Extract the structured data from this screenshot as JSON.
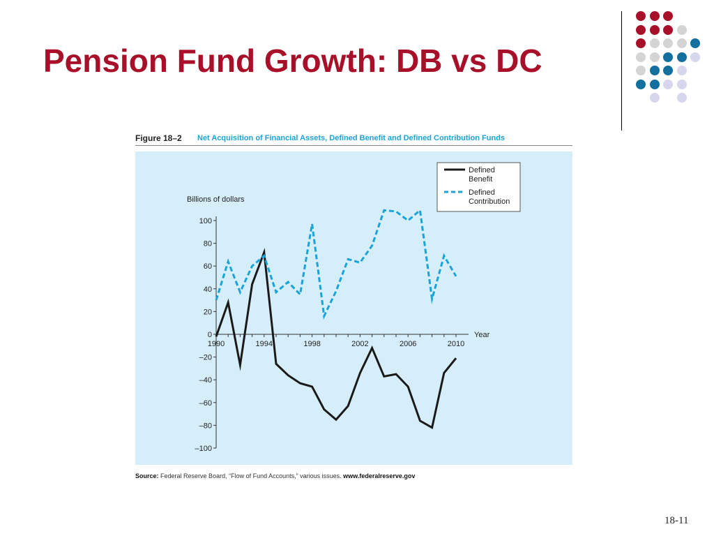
{
  "slide": {
    "title": "Pension Fund Growth: DB vs DC",
    "page_number": "18-11"
  },
  "decoration": {
    "dot_grid": [
      [
        "red",
        "red",
        "red",
        null,
        null
      ],
      [
        "red",
        "red",
        "red",
        "lightgray",
        null
      ],
      [
        "red",
        "lightgray",
        "lightgray",
        "lightgray",
        "blue"
      ],
      [
        "lightgray",
        "lightgray",
        "blue",
        "blue",
        "lavender"
      ],
      [
        "lightgray",
        "blue",
        "blue",
        "lavender",
        null
      ],
      [
        "blue",
        "blue",
        "lavender",
        "lavender",
        null
      ],
      [
        null,
        "lavender",
        null,
        "lavender",
        null
      ]
    ],
    "colors": {
      "red": "#a8102a",
      "lightgray": "#d4d4d4",
      "blue": "#136f9e",
      "lavender": "#d6d6ec"
    }
  },
  "figure": {
    "label": "Figure 18–2",
    "caption": "Net Acquisition of Financial Assets, Defined Benefit and Defined Contribution Funds",
    "source_label": "Source:",
    "source_text": "Federal Reserve Board, “Flow of Fund Accounts,” various issues.",
    "source_url": "www.federalreserve.gov"
  },
  "chart_data": {
    "type": "line",
    "title": "Net Acquisition of Financial Assets, Defined Benefit and Defined Contribution Funds",
    "ylabel": "Billions of dollars",
    "xlabel": "Year",
    "xlim": [
      1990,
      2010
    ],
    "ylim": [
      -100,
      100
    ],
    "x_ticks": [
      1990,
      1994,
      1998,
      2002,
      2006,
      2010
    ],
    "y_ticks": [
      100,
      80,
      60,
      40,
      20,
      0,
      -20,
      -40,
      -60,
      -80,
      -100
    ],
    "y_tick_labels": [
      "100",
      "80",
      "60",
      "40",
      "20",
      "0",
      "–20",
      "–40",
      "–60",
      "–80",
      "–100"
    ],
    "legend_position": "top-right",
    "grid": false,
    "background": "#d6eef9",
    "series": [
      {
        "name": "Defined Benefit",
        "legend_lines": [
          "Defined",
          "Benefit"
        ],
        "color": "#1a1a1a",
        "style": "solid",
        "x": [
          1990,
          1991,
          1992,
          1993,
          1994,
          1995,
          1996,
          1997,
          1998,
          1999,
          2000,
          2001,
          2002,
          2003,
          2004,
          2005,
          2006,
          2007,
          2008,
          2009,
          2010
        ],
        "values": [
          -2,
          28,
          -27,
          44,
          72,
          -26,
          -36,
          -43,
          -46,
          -66,
          -75,
          -63,
          -34,
          -12,
          -37,
          -35,
          -46,
          -76,
          -82,
          -34,
          -21
        ]
      },
      {
        "name": "Defined Contribution",
        "legend_lines": [
          "Defined",
          "Contribution"
        ],
        "color": "#1aa3d9",
        "style": "dashed",
        "x": [
          1990,
          1991,
          1992,
          1993,
          1994,
          1995,
          1996,
          1997,
          1998,
          1999,
          2000,
          2001,
          2002,
          2003,
          2004,
          2005,
          2006,
          2007,
          2008,
          2009,
          2010
        ],
        "values": [
          30,
          64,
          37,
          60,
          69,
          37,
          46,
          35,
          97,
          16,
          38,
          66,
          63,
          78,
          109,
          108,
          100,
          109,
          31,
          69,
          51
        ]
      }
    ]
  }
}
